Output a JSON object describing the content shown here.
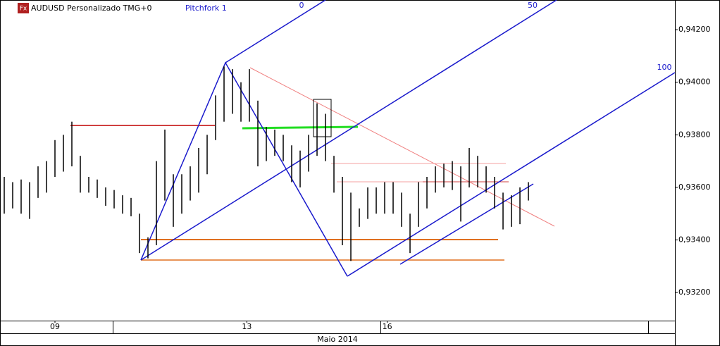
{
  "header": {
    "icon": "Fx",
    "symbol": "AUDUSD Personalizado TMG+0",
    "tool": "Pitchfork 1"
  },
  "chart_data": {
    "type": "ohlc",
    "color": "#000000",
    "x": [
      0.5,
      1.5,
      2.5,
      3.5,
      4.5,
      5.5,
      6.5,
      7.5,
      8.5,
      9.5,
      10.5,
      11.5,
      12.5,
      13.5,
      14.5,
      15.5,
      16.5,
      17.5,
      18.5,
      19.5,
      20.5,
      21.5,
      22.5,
      23.5,
      24.5,
      25.5,
      26.5,
      27.5,
      28.5,
      29.5,
      30.5,
      31.5,
      32.5,
      33.5,
      34.5,
      35.5,
      36.5,
      37.5,
      38.5,
      39.5,
      40.5,
      41.5,
      42.5,
      43.5,
      44.5,
      45.5,
      46.5,
      47.5,
      48.5,
      49.5,
      50.5,
      51.5,
      52.5,
      53.5,
      54.5,
      55.5,
      56.5,
      57.5,
      58.5,
      59.5,
      60.5,
      61.5,
      62.5
    ],
    "high": [
      0.9364,
      0.9362,
      0.9363,
      0.9362,
      0.9368,
      0.937,
      0.9378,
      0.938,
      0.9385,
      0.9372,
      0.9364,
      0.9363,
      0.936,
      0.9359,
      0.9357,
      0.9356,
      0.935,
      0.9341,
      0.937,
      0.9382,
      0.9365,
      0.9365,
      0.9368,
      0.9375,
      0.938,
      0.9395,
      0.9406,
      0.9405,
      0.94,
      0.9405,
      0.9393,
      0.9383,
      0.9382,
      0.938,
      0.9376,
      0.9374,
      0.938,
      0.9392,
      0.9388,
      0.9372,
      0.9364,
      0.9358,
      0.9352,
      0.936,
      0.936,
      0.9362,
      0.9362,
      0.9358,
      0.935,
      0.9362,
      0.9364,
      0.9368,
      0.9369,
      0.937,
      0.9368,
      0.9375,
      0.9372,
      0.9368,
      0.9364,
      0.9358,
      0.9357,
      0.936,
      0.9362
    ],
    "low": [
      0.935,
      0.9352,
      0.935,
      0.9348,
      0.9356,
      0.9358,
      0.9364,
      0.9366,
      0.9368,
      0.9358,
      0.9358,
      0.9356,
      0.9353,
      0.9352,
      0.935,
      0.9349,
      0.9335,
      0.9333,
      0.9338,
      0.9355,
      0.9345,
      0.935,
      0.9355,
      0.9358,
      0.9365,
      0.9378,
      0.9385,
      0.9388,
      0.9385,
      0.9385,
      0.9368,
      0.937,
      0.9372,
      0.937,
      0.9362,
      0.936,
      0.9366,
      0.9372,
      0.937,
      0.9358,
      0.9338,
      0.9332,
      0.9345,
      0.9348,
      0.935,
      0.935,
      0.935,
      0.9345,
      0.9335,
      0.9345,
      0.9352,
      0.9358,
      0.936,
      0.9359,
      0.9347,
      0.936,
      0.936,
      0.9358,
      0.9352,
      0.9344,
      0.9345,
      0.9346,
      0.9355
    ],
    "xlim": [
      0,
      79.83
    ],
    "xticks": [
      {
        "value": 6.5,
        "label": "09"
      },
      {
        "value": 29.2,
        "label": "13"
      },
      {
        "value": 45.8,
        "label": "16"
      }
    ],
    "x_label": "Maio 2014",
    "ylim": [
      0.93093,
      0.94313
    ],
    "yticks": [
      {
        "value": 0.932,
        "label": "0,93200"
      },
      {
        "value": 0.934,
        "label": "0,93400"
      },
      {
        "value": 0.936,
        "label": "0,93600"
      },
      {
        "value": 0.938,
        "label": "0,93800"
      },
      {
        "value": 0.94,
        "label": "0,94000"
      },
      {
        "value": 0.942,
        "label": "0,94200"
      }
    ],
    "pitchfork_levels": [
      0,
      50,
      100
    ]
  }
}
